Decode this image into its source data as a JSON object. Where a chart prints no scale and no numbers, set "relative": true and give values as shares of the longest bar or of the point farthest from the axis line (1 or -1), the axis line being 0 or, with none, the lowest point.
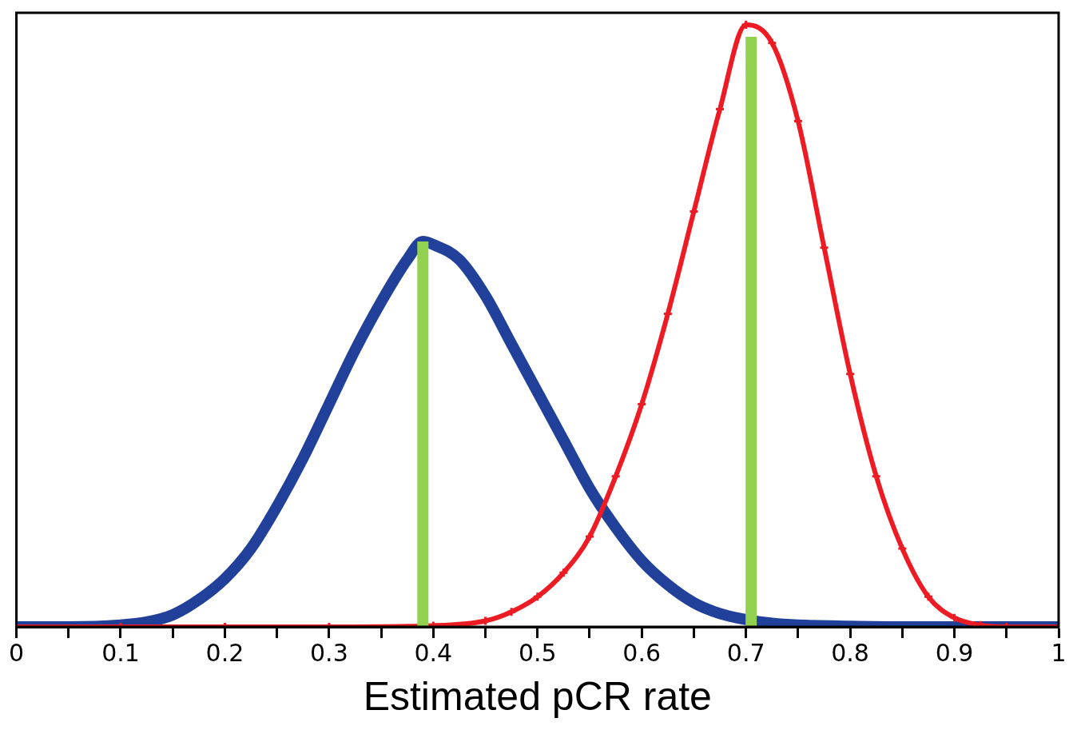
{
  "chart_data": {
    "type": "line",
    "relative": true,
    "xlabel": "Estimated pCR rate",
    "xlim": [
      0,
      1
    ],
    "xticks": [
      0,
      {
        "value": 0.05,
        "label": null
      },
      0.1,
      {
        "value": 0.15,
        "label": null
      },
      0.2,
      {
        "value": 0.25,
        "label": null
      },
      0.3,
      {
        "value": 0.35,
        "label": null
      },
      0.4,
      {
        "value": 0.45,
        "label": null
      },
      0.5,
      {
        "value": 0.55,
        "label": null
      },
      0.6,
      {
        "value": 0.65,
        "label": null
      },
      0.7,
      {
        "value": 0.75,
        "label": null
      },
      0.8,
      {
        "value": 0.85,
        "label": null
      },
      0.9,
      {
        "value": 0.95,
        "label": null
      },
      1
    ],
    "grid": false,
    "legend": false,
    "series": [
      {
        "color": "#21409a",
        "marker": "none",
        "x": [
          0,
          0.05,
          0.1,
          0.125,
          0.15,
          0.175,
          0.2,
          0.225,
          0.25,
          0.275,
          0.3,
          0.325,
          0.35,
          0.375,
          0.39,
          0.4,
          0.425,
          0.45,
          0.475,
          0.5,
          0.525,
          0.55,
          0.575,
          0.6,
          0.625,
          0.65,
          0.675,
          0.7,
          0.725,
          0.75,
          0.8,
          0.85,
          0.9,
          1
        ],
        "values": [
          0,
          0,
          0.003,
          0.008,
          0.02,
          0.045,
          0.08,
          0.13,
          0.2,
          0.28,
          0.37,
          0.46,
          0.54,
          0.61,
          0.64,
          0.635,
          0.61,
          0.55,
          0.47,
          0.39,
          0.31,
          0.23,
          0.165,
          0.11,
          0.07,
          0.04,
          0.022,
          0.012,
          0.006,
          0.003,
          0.001,
          0,
          0,
          0
        ]
      },
      {
        "color": "#ed1c24",
        "marker": "cross",
        "x": [
          0,
          0.1,
          0.2,
          0.3,
          0.4,
          0.45,
          0.475,
          0.5,
          0.525,
          0.55,
          0.575,
          0.6,
          0.625,
          0.65,
          0.675,
          0.7,
          0.725,
          0.75,
          0.775,
          0.8,
          0.825,
          0.85,
          0.875,
          0.9,
          0.925,
          0.95,
          1
        ],
        "values": [
          0,
          0,
          0,
          0,
          0.002,
          0.01,
          0.025,
          0.05,
          0.09,
          0.15,
          0.25,
          0.37,
          0.52,
          0.69,
          0.86,
          1,
          0.97,
          0.84,
          0.63,
          0.42,
          0.25,
          0.13,
          0.05,
          0.015,
          0.003,
          0,
          0
        ]
      },
      {
        "color": "#92d050",
        "marker": "none",
        "x": [
          0.39,
          0.39
        ],
        "values": [
          0,
          0.64
        ]
      },
      {
        "color": "#92d050",
        "marker": "none",
        "x": [
          0.705,
          0.705
        ],
        "values": [
          0,
          0.98
        ]
      }
    ]
  }
}
